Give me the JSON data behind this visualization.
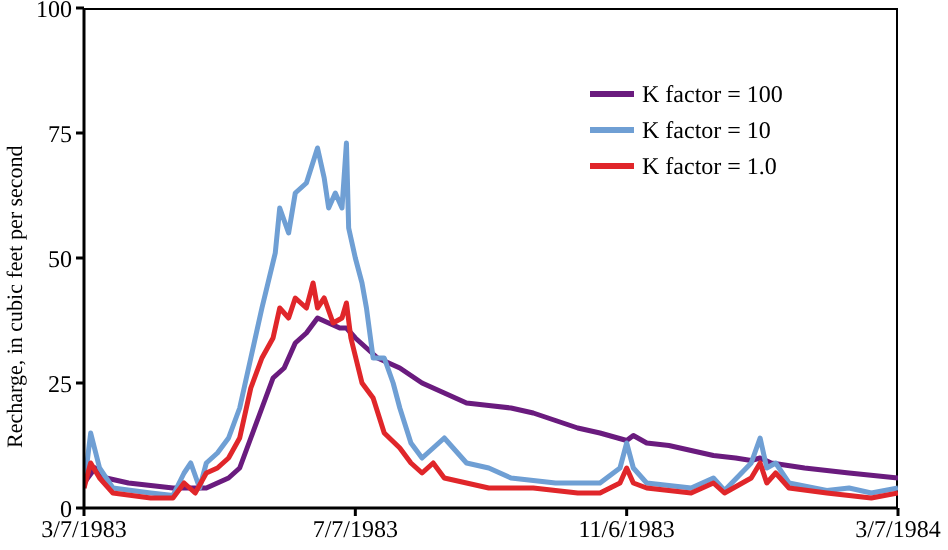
{
  "chart_data": {
    "type": "line",
    "ylabel": "Recharge, in cubic feet per second",
    "xlim": [
      "1983-03-07",
      "1984-03-07"
    ],
    "xticks": [
      {
        "value": "1983-03-07",
        "label": "3/7/1983"
      },
      {
        "value": "1983-07-07",
        "label": "7/7/1983"
      },
      {
        "value": "1983-11-06",
        "label": "11/6/1983"
      },
      {
        "value": "1984-03-07",
        "label": "3/7/1984"
      }
    ],
    "ylim": [
      0,
      100
    ],
    "yticks": [
      0,
      25,
      50,
      75,
      100
    ],
    "grid": false,
    "legend": "top right",
    "marker": "none",
    "line_style": "solid",
    "series": [
      {
        "name": "K factor = 100",
        "color": "#6a1b7e",
        "x": [
          "1983-03-07",
          "1983-03-12",
          "1983-03-17",
          "1983-03-27",
          "1983-04-06",
          "1983-04-16",
          "1983-04-21",
          "1983-05-01",
          "1983-05-06",
          "1983-05-11",
          "1983-05-16",
          "1983-05-21",
          "1983-05-26",
          "1983-05-31",
          "1983-06-05",
          "1983-06-10",
          "1983-06-15",
          "1983-06-20",
          "1983-06-25",
          "1983-06-30",
          "1983-07-03",
          "1983-07-07",
          "1983-07-12",
          "1983-07-17",
          "1983-07-27",
          "1983-08-06",
          "1983-08-16",
          "1983-08-26",
          "1983-09-05",
          "1983-09-15",
          "1983-09-25",
          "1983-10-05",
          "1983-10-15",
          "1983-10-25",
          "1983-11-06",
          "1983-11-09",
          "1983-11-15",
          "1983-11-25",
          "1983-12-05",
          "1983-12-15",
          "1983-12-25",
          "1984-01-01",
          "1984-01-05",
          "1984-01-10",
          "1984-01-25",
          "1984-02-14",
          "1984-03-07"
        ],
        "values": [
          5,
          8,
          6,
          5,
          4.5,
          4,
          4,
          4,
          5,
          6,
          8,
          14,
          20,
          26,
          28,
          33,
          35,
          38,
          37,
          36,
          36,
          34,
          32,
          30,
          28,
          25,
          23,
          21,
          20.5,
          20,
          19,
          17.5,
          16,
          15,
          13.5,
          14.5,
          13,
          12.5,
          11.5,
          10.5,
          10,
          9.5,
          10,
          9,
          8,
          7,
          6
        ]
      },
      {
        "name": "K factor = 10",
        "color": "#6f9fd4",
        "x": [
          "1983-03-07",
          "1983-03-10",
          "1983-03-14",
          "1983-03-20",
          "1983-04-06",
          "1983-04-16",
          "1983-04-21",
          "1983-04-24",
          "1983-04-28",
          "1983-05-01",
          "1983-05-06",
          "1983-05-11",
          "1983-05-16",
          "1983-05-21",
          "1983-05-26",
          "1983-06-01",
          "1983-06-03",
          "1983-06-07",
          "1983-06-10",
          "1983-06-15",
          "1983-06-20",
          "1983-06-23",
          "1983-06-25",
          "1983-06-28",
          "1983-07-01",
          "1983-07-03",
          "1983-07-04",
          "1983-07-07",
          "1983-07-10",
          "1983-07-12",
          "1983-07-15",
          "1983-07-20",
          "1983-07-24",
          "1983-07-27",
          "1983-08-01",
          "1983-08-06",
          "1983-08-11",
          "1983-08-16",
          "1983-08-26",
          "1983-09-05",
          "1983-09-15",
          "1983-09-25",
          "1983-10-05",
          "1983-10-25",
          "1983-11-03",
          "1983-11-06",
          "1983-11-09",
          "1983-11-15",
          "1983-11-25",
          "1983-12-05",
          "1983-12-15",
          "1983-12-20",
          "1984-01-01",
          "1984-01-05",
          "1984-01-08",
          "1984-01-12",
          "1984-01-18",
          "1984-02-04",
          "1984-02-14",
          "1984-02-24",
          "1984-03-07"
        ],
        "values": [
          4,
          15,
          8,
          4,
          3,
          2.5,
          7,
          9,
          4,
          9,
          11,
          14,
          20,
          30,
          40,
          51,
          60,
          55,
          63,
          65,
          72,
          66,
          60,
          63,
          60,
          73,
          56,
          50,
          45,
          40,
          30,
          30,
          25,
          20,
          13,
          10,
          12,
          14,
          9,
          8,
          6,
          5.5,
          5,
          5,
          8,
          13,
          8,
          5,
          4.5,
          4,
          6,
          3.5,
          9,
          14,
          8,
          9,
          5,
          3.5,
          4,
          3,
          4
        ]
      },
      {
        "name": "K factor = 1.0",
        "color": "#e0262a",
        "x": [
          "1983-03-07",
          "1983-03-10",
          "1983-03-14",
          "1983-03-20",
          "1983-04-06",
          "1983-04-16",
          "1983-04-21",
          "1983-04-26",
          "1983-05-01",
          "1983-05-06",
          "1983-05-11",
          "1983-05-16",
          "1983-05-21",
          "1983-05-26",
          "1983-05-31",
          "1983-06-03",
          "1983-06-07",
          "1983-06-10",
          "1983-06-15",
          "1983-06-18",
          "1983-06-20",
          "1983-06-23",
          "1983-06-27",
          "1983-07-01",
          "1983-07-03",
          "1983-07-05",
          "1983-07-10",
          "1983-07-15",
          "1983-07-20",
          "1983-07-27",
          "1983-08-01",
          "1983-08-06",
          "1983-08-11",
          "1983-08-16",
          "1983-08-26",
          "1983-09-05",
          "1983-09-25",
          "1983-10-15",
          "1983-10-25",
          "1983-11-03",
          "1983-11-06",
          "1983-11-09",
          "1983-11-15",
          "1983-12-05",
          "1983-12-15",
          "1983-12-20",
          "1984-01-01",
          "1984-01-05",
          "1984-01-08",
          "1984-01-12",
          "1984-01-18",
          "1984-02-04",
          "1984-02-24",
          "1984-03-07"
        ],
        "values": [
          4,
          9,
          6,
          3,
          2,
          2,
          5,
          3,
          7,
          8,
          10,
          14,
          24,
          30,
          34,
          40,
          38,
          42,
          40,
          45,
          40,
          42,
          37,
          38,
          41,
          34,
          25,
          22,
          15,
          12,
          9,
          7,
          9,
          6,
          5,
          4,
          4,
          3,
          3,
          5,
          8,
          5,
          4,
          3,
          5,
          3,
          6,
          9,
          5,
          7,
          4,
          3,
          2,
          3
        ]
      }
    ]
  }
}
